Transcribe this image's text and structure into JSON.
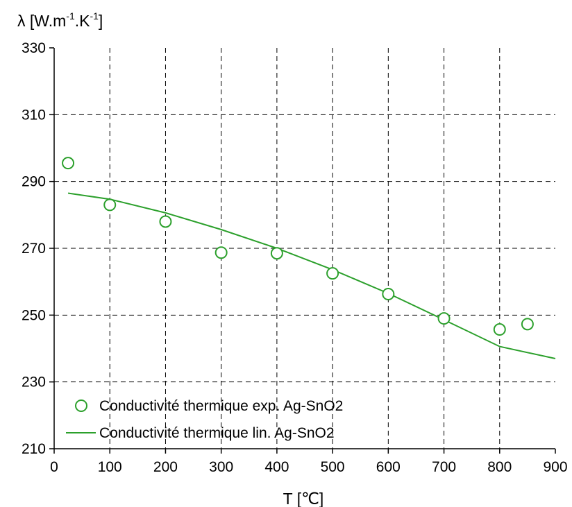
{
  "chart_data": {
    "type": "scatter",
    "ylabel_parts": {
      "symbol": "λ",
      "open": " [W.m",
      "exp1": "-1",
      "mid": ".K",
      "exp2": "-1",
      "close": "]"
    },
    "xlabel": "T [℃]",
    "xlim": [
      0,
      900
    ],
    "ylim": [
      210,
      330
    ],
    "x_ticks": [
      0,
      100,
      200,
      300,
      400,
      500,
      600,
      700,
      800,
      900
    ],
    "y_ticks": [
      210,
      230,
      250,
      270,
      290,
      310,
      330
    ],
    "grid": true,
    "grid_style": "dashed",
    "legend_placement": "bottom-left",
    "series_color": "#2ca02c",
    "series": [
      {
        "name": "Conductivité thermique exp. Ag-SnO2",
        "kind": "markers",
        "x": [
          25,
          100,
          200,
          300,
          400,
          500,
          600,
          700,
          800,
          850
        ],
        "y": [
          295.5,
          283,
          278,
          268.7,
          268.5,
          262.5,
          256.3,
          249,
          245.7,
          247.3
        ]
      },
      {
        "name": "Conductivité thermique lin. Ag-SnO2",
        "kind": "line",
        "x": [
          25,
          100,
          200,
          300,
          400,
          500,
          600,
          700,
          800,
          900
        ],
        "y": [
          286.5,
          284.7,
          280.6,
          275.6,
          270.0,
          263.6,
          256.5,
          248.6,
          240.6,
          237.0
        ]
      }
    ]
  }
}
